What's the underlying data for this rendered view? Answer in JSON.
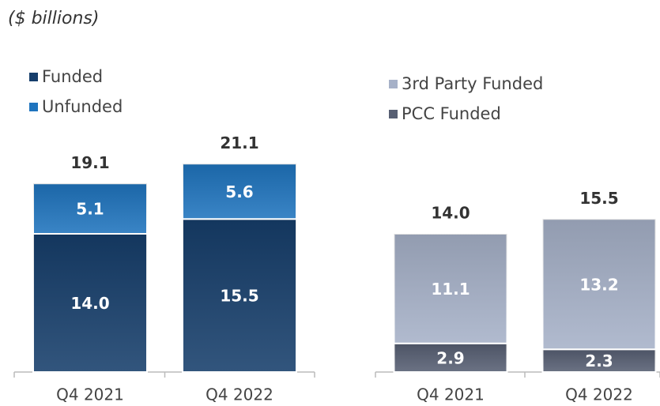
{
  "subtitle": "($ billions)",
  "chart_data": [
    {
      "type": "bar",
      "stacked": true,
      "categories": [
        "Q4 2021",
        "Q4 2022"
      ],
      "series": [
        {
          "name": "Funded",
          "color": "#163e6b",
          "values": [
            14.0,
            15.5
          ],
          "value_labels": [
            "14.0",
            "15.5"
          ]
        },
        {
          "name": "Unfunded",
          "color": "#1f74be",
          "values": [
            5.1,
            5.6
          ],
          "value_labels": [
            "5.1",
            "5.6"
          ]
        }
      ],
      "total_labels": [
        "19.1",
        "21.1"
      ],
      "legend_reversed": false
    },
    {
      "type": "bar",
      "stacked": true,
      "categories": [
        "Q4 2021",
        "Q4 2022"
      ],
      "series": [
        {
          "name": "PCC Funded",
          "color": "#575f73",
          "values": [
            2.9,
            2.3
          ],
          "value_labels": [
            "2.9",
            "2.3"
          ]
        },
        {
          "name": "3rd Party Funded",
          "color": "#a6b1c8",
          "values": [
            11.1,
            13.2
          ],
          "value_labels": [
            "11.1",
            "13.2"
          ]
        }
      ],
      "total_labels": [
        "14.0",
        "15.5"
      ],
      "legend_reversed": true
    }
  ]
}
